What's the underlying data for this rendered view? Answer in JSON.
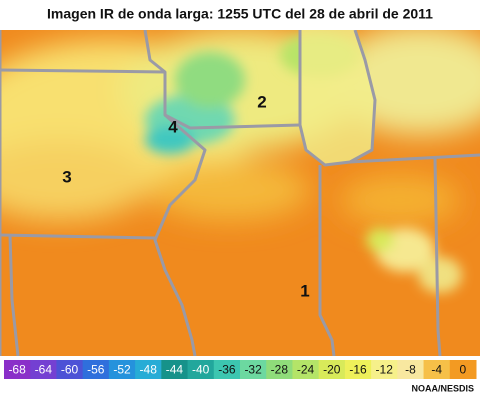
{
  "header": {
    "title": "Imagen IR de onda larga: 1255 UTC del 28 de abril de 2011"
  },
  "map": {
    "labels": [
      "1",
      "2",
      "3",
      "4"
    ]
  },
  "colorbar": {
    "ticks": [
      -68,
      -64,
      -60,
      -56,
      -52,
      -48,
      -44,
      -40,
      -36,
      -32,
      -28,
      -24,
      -20,
      -16,
      -12,
      -8,
      -4,
      0
    ],
    "colors": [
      "#8a2fc9",
      "#7440d2",
      "#4d52d6",
      "#2f6fdc",
      "#2592dc",
      "#27acd6",
      "#16928a",
      "#22a79c",
      "#3cc6b0",
      "#6cd8a0",
      "#8fdc7a",
      "#b4e468",
      "#d8ea5a",
      "#eef05a",
      "#f6f08a",
      "#f8e8a0",
      "#f6c048",
      "#f39a22"
    ]
  },
  "footer": {
    "credit": "NOAA/NESDIS"
  }
}
